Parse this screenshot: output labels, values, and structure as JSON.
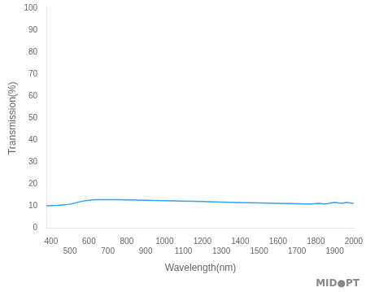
{
  "chart_data": {
    "type": "line",
    "x_label": "Wavelength(nm)",
    "y_label": "Transmission(%)",
    "annotations": [
      "MID●PT"
    ],
    "x": [
      375,
      400,
      430,
      460,
      490,
      520,
      550,
      580,
      610,
      640,
      670,
      700,
      750,
      800,
      850,
      900,
      950,
      1000,
      1100,
      1200,
      1300,
      1400,
      1500,
      1600,
      1700,
      1750,
      1780,
      1800,
      1820,
      1840,
      1860,
      1880,
      1900,
      1920,
      1940,
      1960,
      1980,
      2000
    ],
    "values": [
      10.2,
      10.3,
      10.4,
      10.6,
      10.8,
      11.3,
      12.0,
      12.5,
      12.8,
      13.0,
      13.0,
      13.0,
      13.0,
      12.9,
      12.8,
      12.7,
      12.6,
      12.5,
      12.3,
      12.1,
      11.9,
      11.7,
      11.5,
      11.3,
      11.1,
      11.0,
      11.0,
      11.2,
      11.3,
      11.0,
      11.1,
      11.5,
      11.8,
      11.5,
      11.3,
      11.8,
      11.5,
      11.2
    ],
    "xlim": [
      375,
      2005
    ],
    "ylim": [
      0,
      100
    ],
    "xticks": [
      400,
      500,
      600,
      700,
      800,
      900,
      1000,
      1100,
      1200,
      1300,
      1400,
      1500,
      1600,
      1700,
      1800,
      1900,
      2000
    ],
    "yticks": [
      0,
      10,
      20,
      30,
      40,
      50,
      60,
      70,
      80,
      90,
      100
    ],
    "grid": false
  }
}
